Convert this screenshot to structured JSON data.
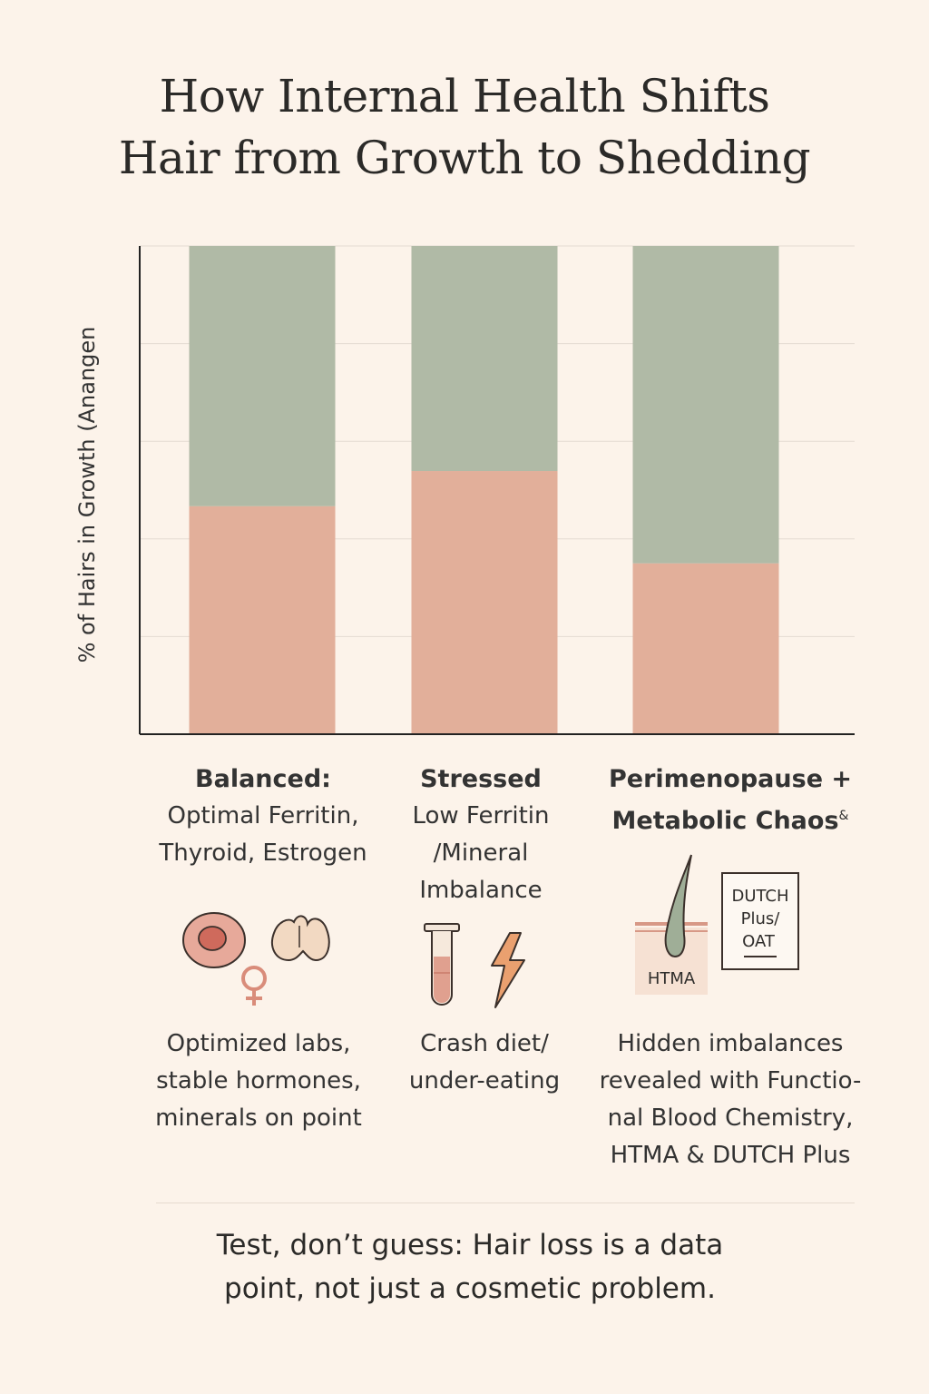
{
  "title": {
    "line1": "How Internal Health Shifts",
    "line2": "Hair from Growth to Shedding"
  },
  "chart_data": {
    "type": "bar",
    "stacked": true,
    "ylabel": "% of Hairs in Growth (Anangen",
    "ylim": [
      0,
      100
    ],
    "grid": true,
    "categories": [
      "Balanced",
      "Stressed",
      "Perimenopause + Metabolic Chaos"
    ],
    "series": [
      {
        "name": "Growth",
        "color": "#b0baa6",
        "values": [
          53.3,
          46.1,
          65.0
        ]
      },
      {
        "name": "Shedding",
        "color": "#e2af9a",
        "values": [
          46.7,
          53.9,
          35.0
        ]
      }
    ]
  },
  "categories": [
    {
      "heading": "Balanced:",
      "lines": [
        "Optimal Ferritin,",
        "Thyroid, Estrogen"
      ]
    },
    {
      "heading": "Stressed",
      "lines": [
        "Low Ferritin",
        "/Mineral",
        "Imbalance"
      ]
    },
    {
      "heading_line1": "Perimenopause +",
      "heading_line2": "Metabolic Chaos",
      "heading_suffix": "&"
    }
  ],
  "icons": {
    "balanced": [
      "red-blood-cell-icon",
      "thyroid-icon",
      "female-symbol-icon"
    ],
    "stressed": [
      "test-tube-icon",
      "lightning-bolt-icon"
    ],
    "chaos": [
      "hair-follicle-icon",
      "lab-report-icon"
    ],
    "htma_label": "HTMA",
    "report_lines": [
      "DUTCH",
      "Plus/",
      "OAT"
    ]
  },
  "descriptions": [
    [
      "Optimized labs,",
      "stable hormones,",
      "minerals on point"
    ],
    [
      "Crash diet/",
      "under-eating"
    ],
    [
      "Hidden imbalances",
      "revealed with Functio-",
      "nal Blood Chemistry,",
      "HTMA & DUTCH Plus"
    ]
  ],
  "footer": {
    "line1": "Test, don’t guess: Hair loss is a data",
    "line2": "point, not just a cosmetic problem."
  },
  "colors": {
    "background": "#fcf3ea",
    "growth": "#b0baa6",
    "shedding": "#e2af9a",
    "axis": "#222222",
    "grid": "#e4dbd2"
  }
}
